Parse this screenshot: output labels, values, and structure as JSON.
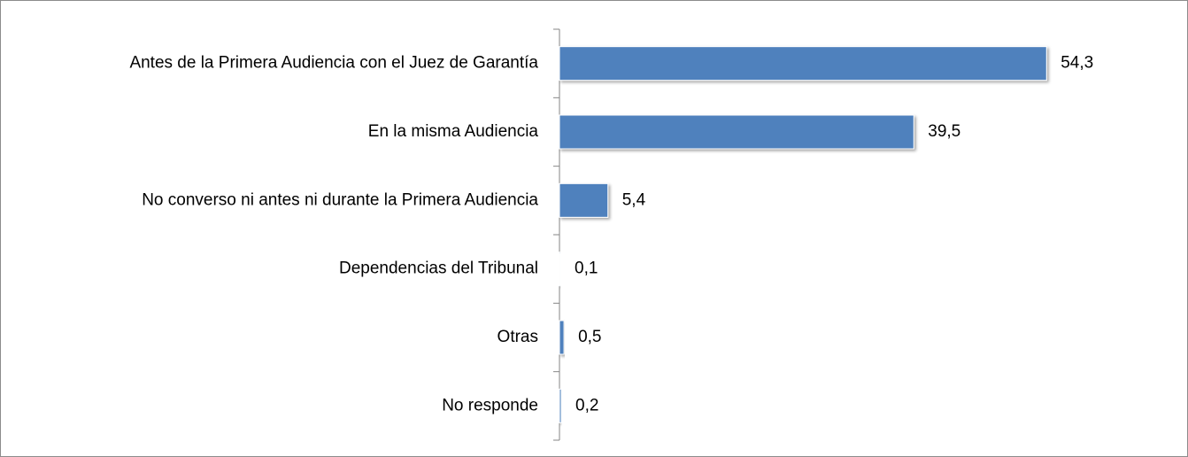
{
  "chart_data": {
    "type": "bar",
    "orientation": "horizontal",
    "categories": [
      "Antes de la Primera Audiencia con el Juez de Garantía",
      "En la misma Audiencia",
      "No converso ni antes ni durante la Primera Audiencia",
      "Dependencias del Tribunal",
      "Otras",
      "No responde"
    ],
    "values": [
      54.3,
      39.5,
      5.4,
      0.1,
      0.5,
      0.2
    ],
    "value_labels": [
      "54,3",
      "39,5",
      "5,4",
      "0,1",
      "0,5",
      "0,2"
    ],
    "color": "#4f81bd",
    "xlim": [
      0,
      60
    ]
  }
}
